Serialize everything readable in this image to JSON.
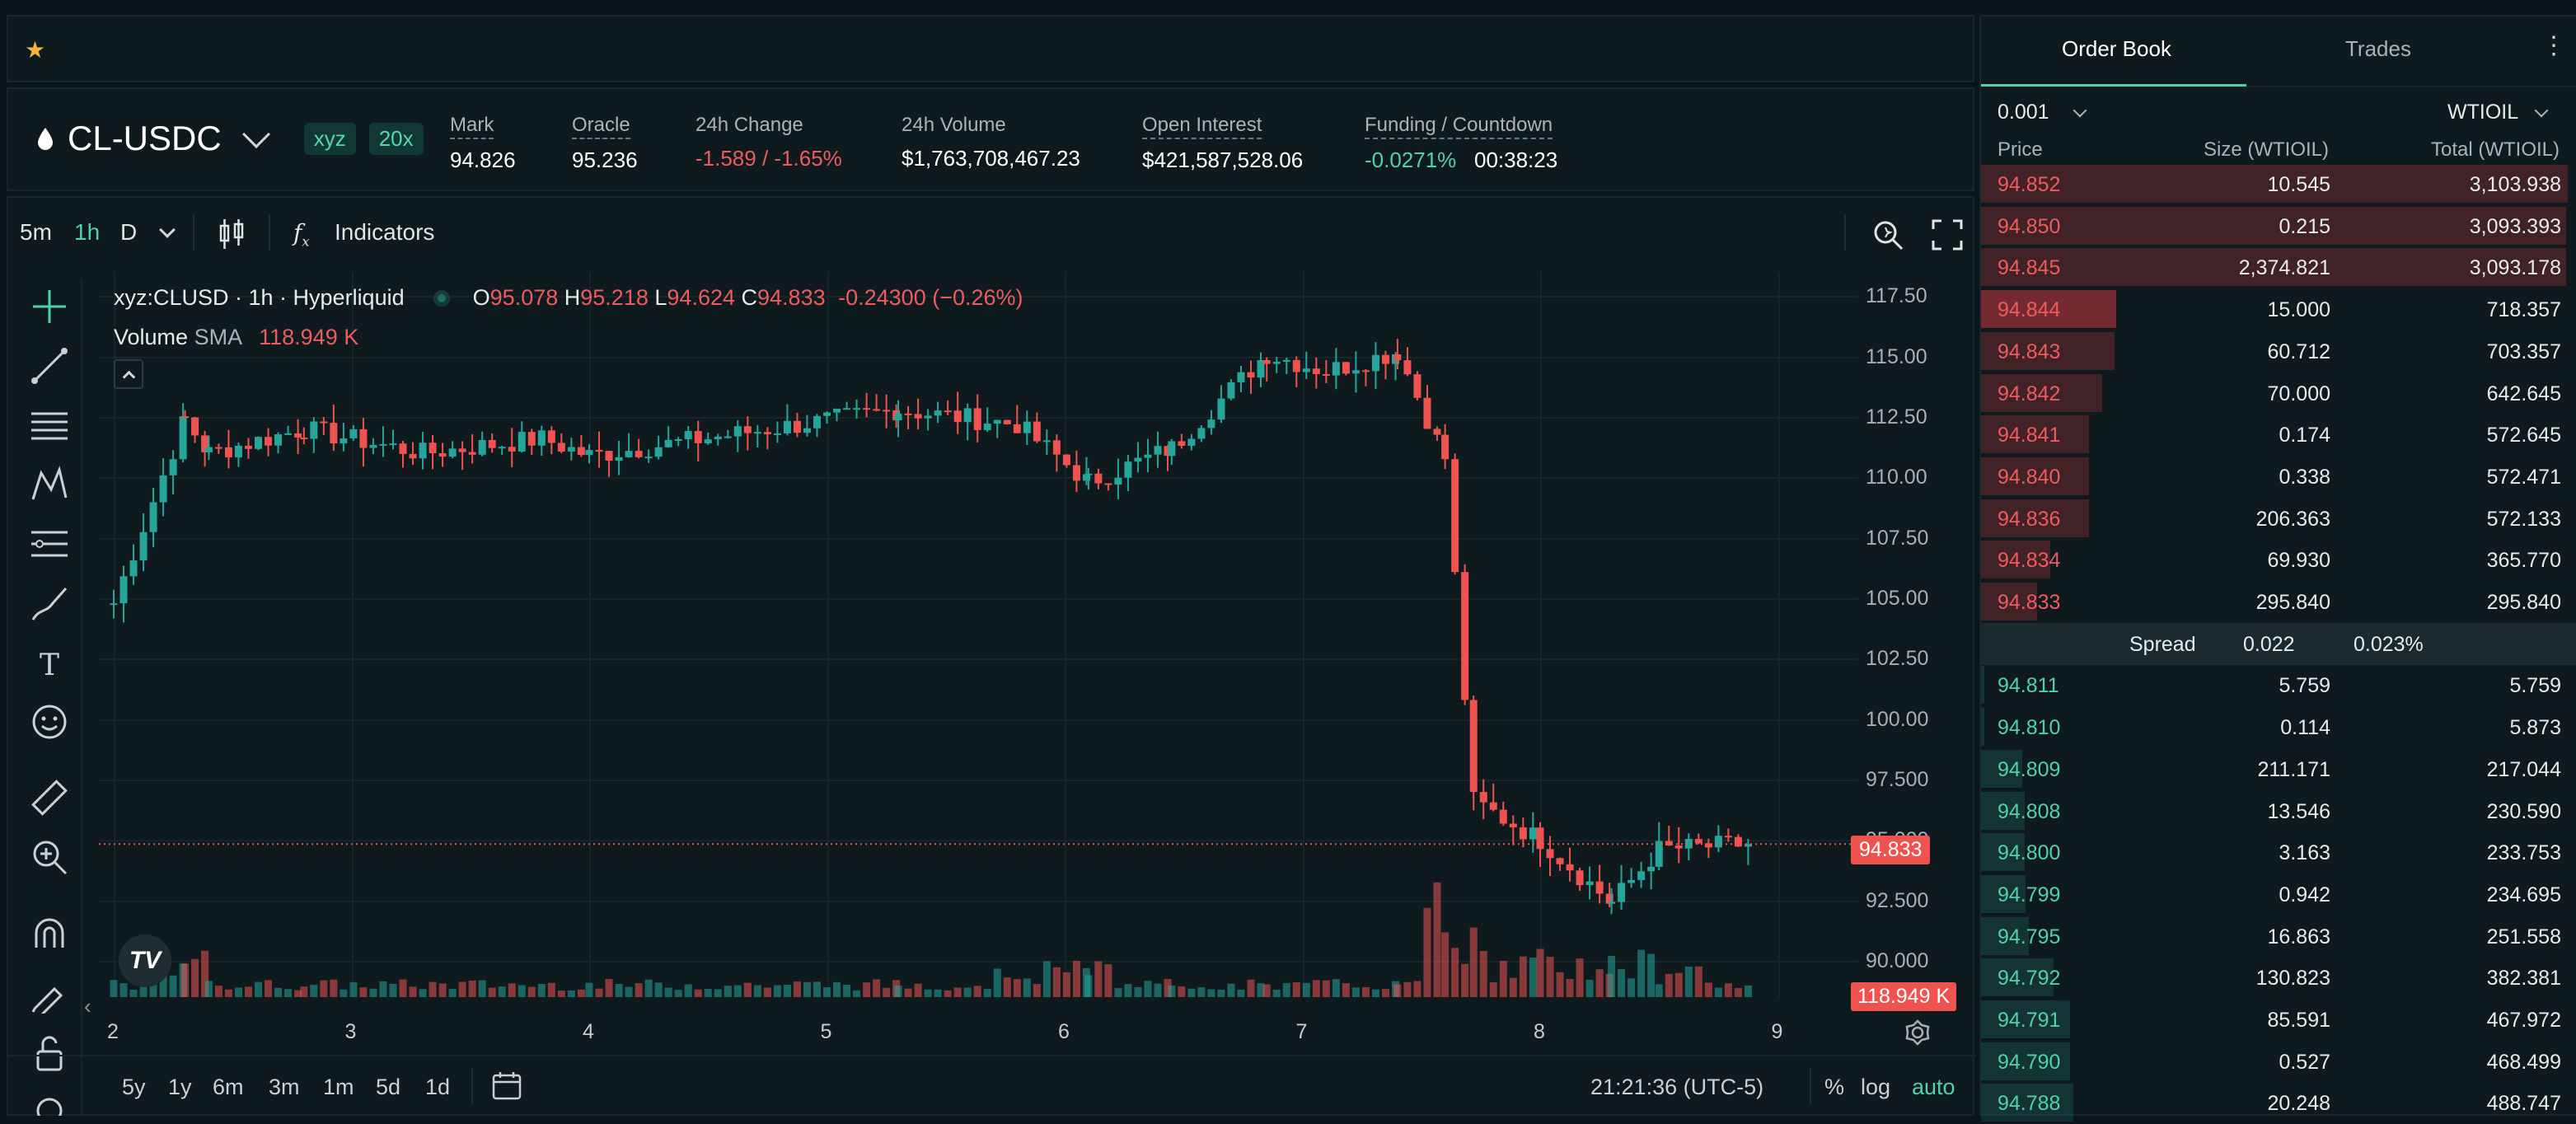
{
  "colors": {
    "up": "#26a69a",
    "down": "#ef5350",
    "accent": "#4fd1b0",
    "star": "#f3b33b"
  },
  "topbar": {
    "star_icon": "★"
  },
  "ticker": {
    "pair": "CL-USDC",
    "badges": [
      "xyz",
      "20x"
    ],
    "stats": [
      {
        "label": "Mark",
        "value": "94.826"
      },
      {
        "label": "Oracle",
        "value": "95.236"
      },
      {
        "label": "24h Change",
        "value": "-1.589 / -1.65%"
      },
      {
        "label": "24h Volume",
        "value": "$1,763,708,467.23"
      },
      {
        "label": "Open Interest",
        "value": "$421,587,528.06"
      },
      {
        "label": "Funding / Countdown",
        "value": "-0.0271%",
        "value2": "00:38:23"
      }
    ]
  },
  "chart": {
    "intervals": [
      "5m",
      "1h",
      "D"
    ],
    "indicators_label": "Indicators",
    "symbol_line": "xyz:CLUSD · 1h · Hyperliquid",
    "ohlc": {
      "o_label": "O",
      "o": "95.078",
      "h_label": "H",
      "h": "95.218",
      "l_label": "L",
      "l": "94.624",
      "c_label": "C",
      "c": "94.833",
      "chg": "-0.24300 (−0.26%)"
    },
    "volume_label": "Volume",
    "sma_label": "SMA",
    "volume_value": "118.949 K",
    "price_tag": "94.833",
    "vol_tag": "118.949 K",
    "y_ticks": [
      "117.50",
      "115.00",
      "112.50",
      "110.00",
      "107.50",
      "105.00",
      "102.50",
      "100.00",
      "97.500",
      "95.000",
      "92.500",
      "90.000"
    ],
    "x_ticks": [
      "2",
      "3",
      "4",
      "5",
      "6",
      "7",
      "8",
      "9"
    ],
    "ranges": [
      "5y",
      "1y",
      "6m",
      "3m",
      "1m",
      "5d",
      "1d"
    ],
    "clock": "21:21:36 (UTC-5)",
    "scale_opts": [
      "%",
      "log",
      "auto"
    ]
  },
  "chart_data": {
    "type": "candlestick",
    "x_label_days": [
      "2",
      "3",
      "4",
      "5",
      "6",
      "7",
      "8",
      "9"
    ],
    "ylim": [
      88.5,
      118.5
    ],
    "y_ticks": [
      117.5,
      115,
      112.5,
      110,
      107.5,
      105,
      102.5,
      100,
      97.5,
      95,
      92.5,
      90
    ],
    "last_close": 94.833,
    "segments": [
      {
        "from_day": 2.0,
        "to_day": 2.3,
        "start": 104.8,
        "end": 112.4
      },
      {
        "from_day": 2.3,
        "to_day": 2.4,
        "start": 112.4,
        "end": 111.0
      },
      {
        "from_day": 2.4,
        "to_day": 2.8,
        "start": 111.0,
        "end": 112.0
      },
      {
        "from_day": 2.8,
        "to_day": 3.3,
        "start": 112.0,
        "end": 111.0
      },
      {
        "from_day": 3.3,
        "to_day": 3.8,
        "start": 111.0,
        "end": 111.6
      },
      {
        "from_day": 3.8,
        "to_day": 4.0,
        "start": 111.6,
        "end": 110.9
      },
      {
        "from_day": 4.0,
        "to_day": 5.3,
        "start": 110.9,
        "end": 112.8
      },
      {
        "from_day": 5.3,
        "to_day": 5.8,
        "start": 112.8,
        "end": 112.2
      },
      {
        "from_day": 5.8,
        "to_day": 6.1,
        "start": 112.2,
        "end": 109.8
      },
      {
        "from_day": 6.1,
        "to_day": 6.45,
        "start": 109.8,
        "end": 111.2
      },
      {
        "from_day": 6.45,
        "to_day": 6.85,
        "start": 111.2,
        "end": 115.1
      },
      {
        "from_day": 6.85,
        "to_day": 7.1,
        "start": 115.1,
        "end": 114.4
      },
      {
        "from_day": 7.1,
        "to_day": 7.4,
        "start": 114.4,
        "end": 115.2
      },
      {
        "from_day": 7.4,
        "to_day": 7.6,
        "start": 115.2,
        "end": 110.8
      },
      {
        "from_day": 7.6,
        "to_day": 7.72,
        "start": 110.8,
        "end": 96.6
      },
      {
        "from_day": 7.72,
        "to_day": 8.0,
        "start": 96.6,
        "end": 95.0
      },
      {
        "from_day": 8.0,
        "to_day": 8.3,
        "start": 95.0,
        "end": 92.4
      },
      {
        "from_day": 8.3,
        "to_day": 8.5,
        "start": 92.4,
        "end": 94.6
      },
      {
        "from_day": 8.5,
        "to_day": 8.88,
        "start": 94.6,
        "end": 94.833
      }
    ]
  },
  "book": {
    "tabs": [
      "Order Book",
      "Trades"
    ],
    "tick": "0.001",
    "asset": "WTIOIL",
    "headers": [
      "Price",
      "Size (WTIOIL)",
      "Total (WTIOIL)"
    ],
    "asks": [
      {
        "price": "94.852",
        "size": "10.545",
        "total": "3,103.938",
        "depth": 1.0
      },
      {
        "price": "94.850",
        "size": "0.215",
        "total": "3,093.393",
        "depth": 0.997
      },
      {
        "price": "94.845",
        "size": "2,374.821",
        "total": "3,093.178",
        "depth": 0.997
      },
      {
        "price": "94.844",
        "size": "15.000",
        "total": "718.357",
        "depth": 0.231
      },
      {
        "price": "94.843",
        "size": "60.712",
        "total": "703.357",
        "depth": 0.227
      },
      {
        "price": "94.842",
        "size": "70.000",
        "total": "642.645",
        "depth": 0.207
      },
      {
        "price": "94.841",
        "size": "0.174",
        "total": "572.645",
        "depth": 0.184
      },
      {
        "price": "94.840",
        "size": "0.338",
        "total": "572.471",
        "depth": 0.184
      },
      {
        "price": "94.836",
        "size": "206.363",
        "total": "572.133",
        "depth": 0.184
      },
      {
        "price": "94.834",
        "size": "69.930",
        "total": "365.770",
        "depth": 0.118
      },
      {
        "price": "94.833",
        "size": "295.840",
        "total": "295.840",
        "depth": 0.095
      }
    ],
    "spread": {
      "label": "Spread",
      "value": "0.022",
      "pct": "0.023%"
    },
    "bids": [
      {
        "price": "94.811",
        "size": "5.759",
        "total": "5.759",
        "depth": 0.002
      },
      {
        "price": "94.810",
        "size": "0.114",
        "total": "5.873",
        "depth": 0.002
      },
      {
        "price": "94.809",
        "size": "211.171",
        "total": "217.044",
        "depth": 0.07
      },
      {
        "price": "94.808",
        "size": "13.546",
        "total": "230.590",
        "depth": 0.074
      },
      {
        "price": "94.800",
        "size": "3.163",
        "total": "233.753",
        "depth": 0.075
      },
      {
        "price": "94.799",
        "size": "0.942",
        "total": "234.695",
        "depth": 0.076
      },
      {
        "price": "94.795",
        "size": "16.863",
        "total": "251.558",
        "depth": 0.081
      },
      {
        "price": "94.792",
        "size": "130.823",
        "total": "382.381",
        "depth": 0.123
      },
      {
        "price": "94.791",
        "size": "85.591",
        "total": "467.972",
        "depth": 0.151
      },
      {
        "price": "94.790",
        "size": "0.527",
        "total": "468.499",
        "depth": 0.151
      },
      {
        "price": "94.788",
        "size": "20.248",
        "total": "488.747",
        "depth": 0.157
      }
    ]
  }
}
